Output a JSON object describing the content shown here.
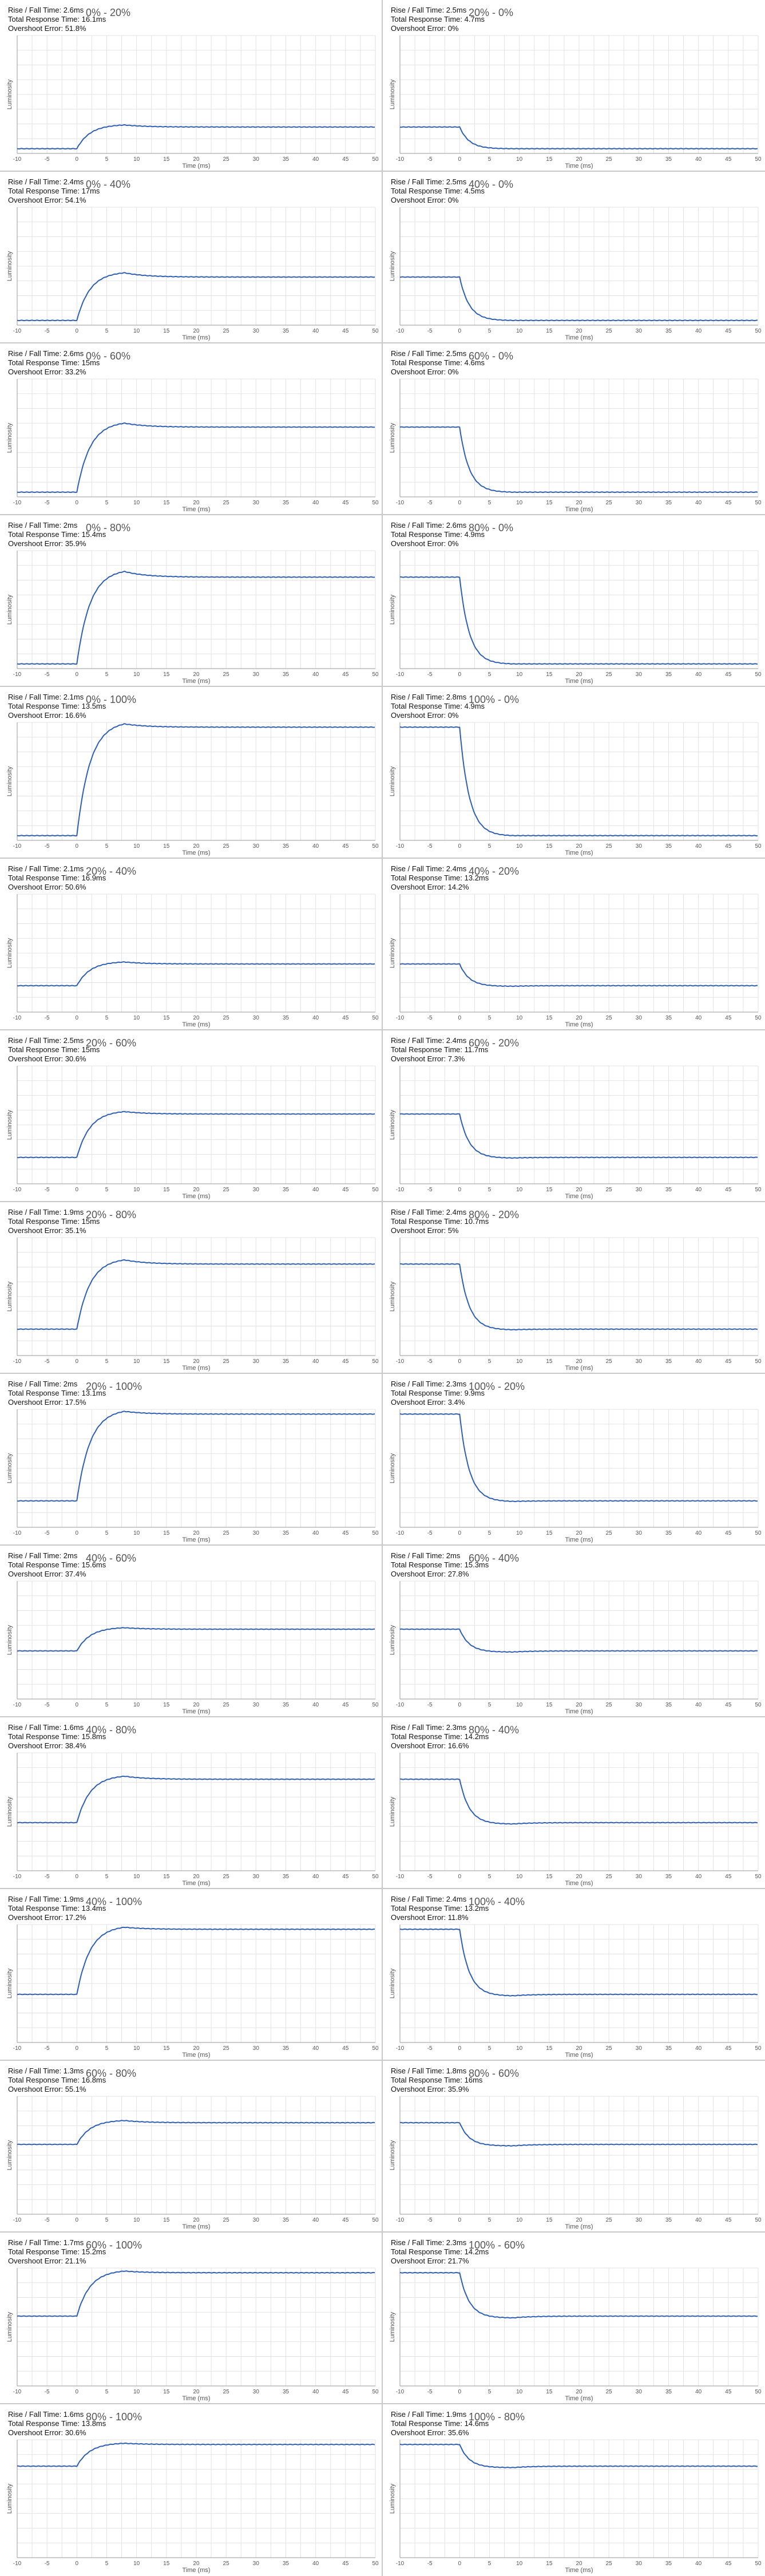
{
  "axis": {
    "xlabel": "Time (ms)",
    "ylabel": "Luminosity",
    "xticks": [
      -10,
      -5,
      0,
      5,
      10,
      15,
      20,
      25,
      30,
      35,
      40,
      45,
      50
    ],
    "xlim": [
      -10,
      50
    ]
  },
  "labels": {
    "rise_fall": "Rise / Fall Time: ",
    "total_response": "Total Response Time: ",
    "overshoot": "Overshoot Error: "
  },
  "colors": {
    "line": "#2f5fb5",
    "grid": "#e3e3e3",
    "axis": "#999999"
  },
  "chart_data": [
    {
      "type": "line",
      "title": "0% - 20%",
      "rise_fall": "2.6ms",
      "total_response": "16.1ms",
      "overshoot": "51.8%",
      "from": 0,
      "to": 20
    },
    {
      "type": "line",
      "title": "20% - 0%",
      "rise_fall": "2.5ms",
      "total_response": "4.7ms",
      "overshoot": "0%",
      "from": 20,
      "to": 0
    },
    {
      "type": "line",
      "title": "0% - 40%",
      "rise_fall": "2.4ms",
      "total_response": "17ms",
      "overshoot": "54.1%",
      "from": 0,
      "to": 40
    },
    {
      "type": "line",
      "title": "40% - 0%",
      "rise_fall": "2.5ms",
      "total_response": "4.5ms",
      "overshoot": "0%",
      "from": 40,
      "to": 0
    },
    {
      "type": "line",
      "title": "0% - 60%",
      "rise_fall": "2.6ms",
      "total_response": "15ms",
      "overshoot": "33.2%",
      "from": 0,
      "to": 60
    },
    {
      "type": "line",
      "title": "60% - 0%",
      "rise_fall": "2.5ms",
      "total_response": "4.6ms",
      "overshoot": "0%",
      "from": 60,
      "to": 0
    },
    {
      "type": "line",
      "title": "0% - 80%",
      "rise_fall": "2ms",
      "total_response": "15.4ms",
      "overshoot": "35.9%",
      "from": 0,
      "to": 80
    },
    {
      "type": "line",
      "title": "80% - 0%",
      "rise_fall": "2.6ms",
      "total_response": "4.9ms",
      "overshoot": "0%",
      "from": 80,
      "to": 0
    },
    {
      "type": "line",
      "title": "0% - 100%",
      "rise_fall": "2.1ms",
      "total_response": "13.5ms",
      "overshoot": "16.6%",
      "from": 0,
      "to": 100
    },
    {
      "type": "line",
      "title": "100% - 0%",
      "rise_fall": "2.8ms",
      "total_response": "4.9ms",
      "overshoot": "0%",
      "from": 100,
      "to": 0
    },
    {
      "type": "line",
      "title": "20% - 40%",
      "rise_fall": "2.1ms",
      "total_response": "16.9ms",
      "overshoot": "50.6%",
      "from": 20,
      "to": 40
    },
    {
      "type": "line",
      "title": "40% - 20%",
      "rise_fall": "2.4ms",
      "total_response": "13.2ms",
      "overshoot": "14.2%",
      "from": 40,
      "to": 20
    },
    {
      "type": "line",
      "title": "20% - 60%",
      "rise_fall": "2.5ms",
      "total_response": "15ms",
      "overshoot": "30.6%",
      "from": 20,
      "to": 60
    },
    {
      "type": "line",
      "title": "60% - 20%",
      "rise_fall": "2.4ms",
      "total_response": "11.7ms",
      "overshoot": "7.3%",
      "from": 60,
      "to": 20
    },
    {
      "type": "line",
      "title": "20% - 80%",
      "rise_fall": "1.9ms",
      "total_response": "15ms",
      "overshoot": "35.1%",
      "from": 20,
      "to": 80
    },
    {
      "type": "line",
      "title": "80% - 20%",
      "rise_fall": "2.4ms",
      "total_response": "10.7ms",
      "overshoot": "5%",
      "from": 80,
      "to": 20
    },
    {
      "type": "line",
      "title": "20% - 100%",
      "rise_fall": "2ms",
      "total_response": "13.1ms",
      "overshoot": "17.5%",
      "from": 20,
      "to": 100
    },
    {
      "type": "line",
      "title": "100% - 20%",
      "rise_fall": "2.3ms",
      "total_response": "9.9ms",
      "overshoot": "3.4%",
      "from": 100,
      "to": 20
    },
    {
      "type": "line",
      "title": "40% - 60%",
      "rise_fall": "2ms",
      "total_response": "15.6ms",
      "overshoot": "37.4%",
      "from": 40,
      "to": 60
    },
    {
      "type": "line",
      "title": "60% - 40%",
      "rise_fall": "2ms",
      "total_response": "15.3ms",
      "overshoot": "27.8%",
      "from": 60,
      "to": 40
    },
    {
      "type": "line",
      "title": "40% - 80%",
      "rise_fall": "1.6ms",
      "total_response": "15.8ms",
      "overshoot": "38.4%",
      "from": 40,
      "to": 80
    },
    {
      "type": "line",
      "title": "80% - 40%",
      "rise_fall": "2.3ms",
      "total_response": "14.2ms",
      "overshoot": "16.6%",
      "from": 80,
      "to": 40
    },
    {
      "type": "line",
      "title": "40% - 100%",
      "rise_fall": "1.9ms",
      "total_response": "13.4ms",
      "overshoot": "17.2%",
      "from": 40,
      "to": 100
    },
    {
      "type": "line",
      "title": "100% - 40%",
      "rise_fall": "2.4ms",
      "total_response": "13.2ms",
      "overshoot": "11.8%",
      "from": 100,
      "to": 40
    },
    {
      "type": "line",
      "title": "60% - 80%",
      "rise_fall": "1.3ms",
      "total_response": "16.8ms",
      "overshoot": "55.1%",
      "from": 60,
      "to": 80
    },
    {
      "type": "line",
      "title": "80% - 60%",
      "rise_fall": "1.8ms",
      "total_response": "16ms",
      "overshoot": "35.9%",
      "from": 80,
      "to": 60
    },
    {
      "type": "line",
      "title": "60% - 100%",
      "rise_fall": "1.7ms",
      "total_response": "15.2ms",
      "overshoot": "21.1%",
      "from": 60,
      "to": 100
    },
    {
      "type": "line",
      "title": "100% - 60%",
      "rise_fall": "2.3ms",
      "total_response": "14.2ms",
      "overshoot": "21.7%",
      "from": 100,
      "to": 60
    },
    {
      "type": "line",
      "title": "80% - 100%",
      "rise_fall": "1.6ms",
      "total_response": "13.8ms",
      "overshoot": "30.6%",
      "from": 80,
      "to": 100
    },
    {
      "type": "line",
      "title": "100% - 80%",
      "rise_fall": "1.9ms",
      "total_response": "14.6ms",
      "overshoot": "35.6%",
      "from": 100,
      "to": 80
    }
  ]
}
